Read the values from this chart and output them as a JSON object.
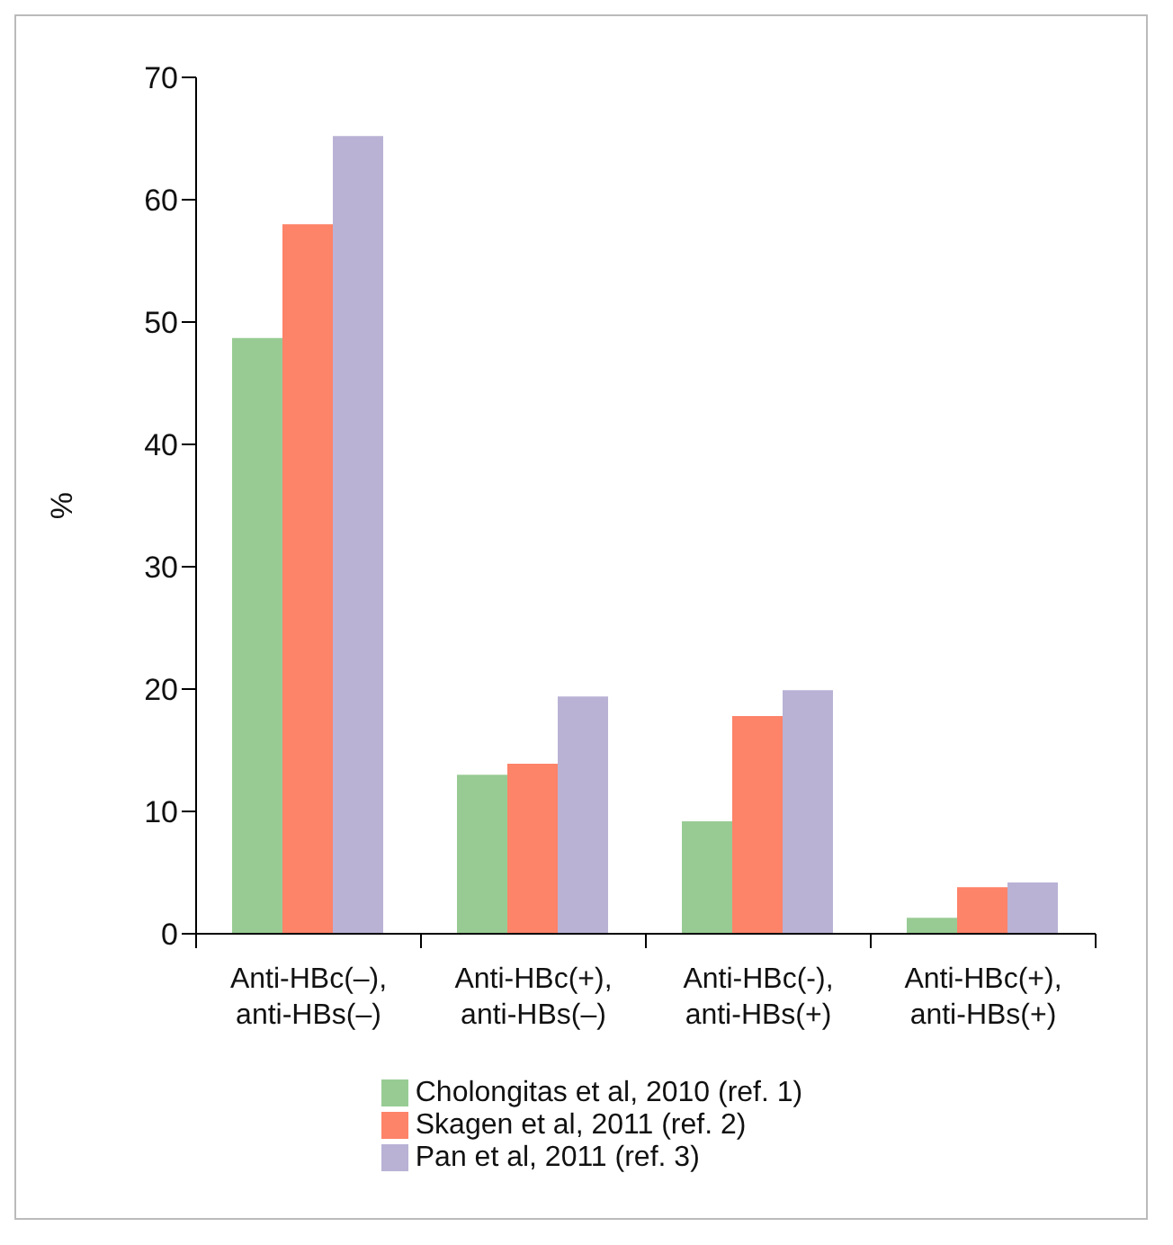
{
  "chart_data": {
    "type": "bar",
    "ylabel": "%",
    "categories": [
      "Anti-HBc(–), anti-HBs(–)",
      "Anti-HBc(+), anti-HBs(–)",
      "Anti-HBc(-), anti-HBs(+)",
      "Anti-HBc(+), anti-HBs(+)"
    ],
    "series": [
      {
        "name": "Cholongitas et al, 2010 (ref. 1)",
        "color": "#98cb93",
        "values": [
          48.7,
          13.0,
          9.2,
          1.3
        ]
      },
      {
        "name": "Skagen et al, 2011 (ref. 2)",
        "color": "#fd8369",
        "values": [
          58.0,
          13.9,
          17.8,
          3.8
        ]
      },
      {
        "name": "Pan et al, 2011 (ref. 3)",
        "color": "#b9b2d5",
        "values": [
          65.2,
          19.4,
          19.9,
          4.2
        ]
      }
    ],
    "ylim": [
      0,
      70
    ],
    "yticks": [
      0,
      10,
      20,
      30,
      40,
      50,
      60,
      70
    ],
    "grid": false,
    "legend": "bottom"
  }
}
